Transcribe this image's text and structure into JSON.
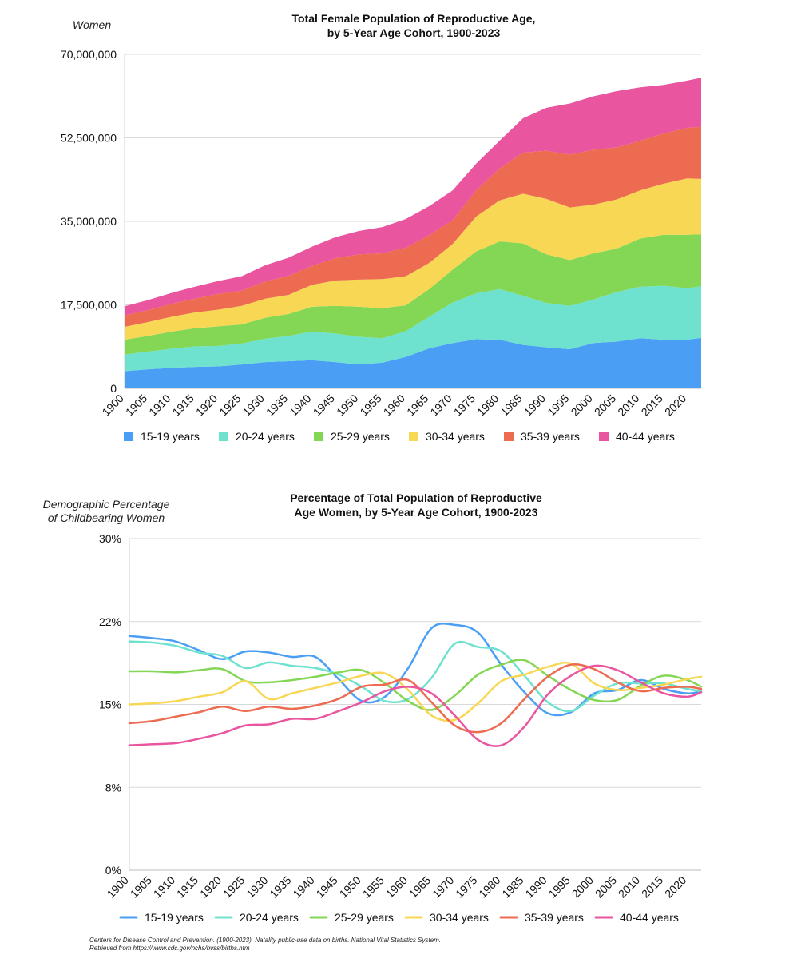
{
  "chart_data": [
    {
      "type": "area",
      "stacked": true,
      "title_line1": "Total Female Population of Reproductive Age,",
      "title_line2": "by 5-Year Age Cohort, 1900-2023",
      "ylabel": "Women",
      "ylim": [
        0,
        70000000
      ],
      "yticks": [
        0,
        17500000,
        35000000,
        52500000,
        70000000
      ],
      "ytick_labels": [
        "0",
        "17,500,000",
        "35,000,000",
        "52,500,000",
        "70,000,000"
      ],
      "xlim": [
        1900,
        2023
      ],
      "xticks": [
        "1900",
        "1905",
        "1910",
        "1915",
        "1920",
        "1925",
        "1930",
        "1935",
        "1940",
        "1945",
        "1950",
        "1955",
        "1960",
        "1965",
        "1970",
        "1975",
        "1980",
        "1985",
        "1990",
        "1995",
        "2000",
        "2005",
        "2010",
        "2015",
        "2020"
      ],
      "grid": true,
      "legend_position": "bottom",
      "x": [
        1900,
        1905,
        1910,
        1915,
        1920,
        1925,
        1930,
        1935,
        1940,
        1945,
        1950,
        1955,
        1960,
        1965,
        1970,
        1975,
        1980,
        1985,
        1990,
        1995,
        2000,
        2005,
        2010,
        2015,
        2020,
        2023
      ],
      "series": [
        {
          "name": "15-19 years",
          "color": "#4a9ff5",
          "values": [
            3600000,
            4000000,
            4300000,
            4500000,
            4600000,
            5000000,
            5500000,
            5700000,
            5900000,
            5500000,
            5000000,
            5400000,
            6600000,
            8400000,
            9500000,
            10300000,
            10200000,
            9100000,
            8600000,
            8200000,
            9500000,
            9800000,
            10500000,
            10200000,
            10200000,
            10600000
          ]
        },
        {
          "name": "20-24 years",
          "color": "#6ee2cf",
          "values": [
            3500000,
            3700000,
            4000000,
            4300000,
            4300000,
            4400000,
            4900000,
            5300000,
            6000000,
            6000000,
            5800000,
            5100000,
            5400000,
            6600000,
            8500000,
            9600000,
            10600000,
            10300000,
            9300000,
            9100000,
            9100000,
            10400000,
            10800000,
            11300000,
            10800000,
            10800000
          ]
        },
        {
          "name": "25-29 years",
          "color": "#84d655",
          "values": [
            3100000,
            3300000,
            3600000,
            3800000,
            4100000,
            4000000,
            4400000,
            4600000,
            5200000,
            5800000,
            6300000,
            6300000,
            5400000,
            5800000,
            6900000,
            8800000,
            10000000,
            11000000,
            10200000,
            9600000,
            9700000,
            9100000,
            10100000,
            10700000,
            11200000,
            10900000
          ]
        },
        {
          "name": "30-34 years",
          "color": "#f8d755",
          "values": [
            2700000,
            2900000,
            3100000,
            3300000,
            3500000,
            3900000,
            4000000,
            4000000,
            4600000,
            5300000,
            5700000,
            6100000,
            6100000,
            5500000,
            5400000,
            7300000,
            8600000,
            10400000,
            11600000,
            11000000,
            10200000,
            10300000,
            10100000,
            10700000,
            11800000,
            11600000
          ]
        },
        {
          "name": "35-39 years",
          "color": "#ed6b51",
          "values": [
            2400000,
            2500000,
            2700000,
            2900000,
            3300000,
            3200000,
            3600000,
            4000000,
            4000000,
            4700000,
            5300000,
            5400000,
            6000000,
            5800000,
            5000000,
            5500000,
            6700000,
            8600000,
            10100000,
            11100000,
            11500000,
            10900000,
            10400000,
            10500000,
            10600000,
            10900000
          ]
        },
        {
          "name": "40-44 years",
          "color": "#e9559e",
          "values": [
            1900000,
            2100000,
            2300000,
            2500000,
            2700000,
            3000000,
            3400000,
            3800000,
            4000000,
            4400000,
            4900000,
            5500000,
            6000000,
            6100000,
            6200000,
            5600000,
            5800000,
            7200000,
            9000000,
            10700000,
            11200000,
            11800000,
            11200000,
            10200000,
            9900000,
            10300000
          ]
        }
      ]
    },
    {
      "type": "line",
      "title_line1": "Percentage of Total Population of Reproductive",
      "title_line2": "Age Women, by 5-Year Age Cohort, 1900-2023",
      "ylabel_line1": "Demographic Percentage",
      "ylabel_line2": "of Childbearing Women",
      "ylim": [
        0,
        30
      ],
      "yticks": [
        0,
        7.5,
        15,
        22.5,
        30
      ],
      "ytick_labels": [
        "0%",
        "8%",
        "15%",
        "22%",
        "30%"
      ],
      "xlim": [
        1900,
        2023
      ],
      "xticks": [
        "1900",
        "1905",
        "1910",
        "1915",
        "1920",
        "1925",
        "1930",
        "1935",
        "1940",
        "1945",
        "1950",
        "1955",
        "1960",
        "1965",
        "1970",
        "1975",
        "1980",
        "1985",
        "1990",
        "1995",
        "2000",
        "2005",
        "2010",
        "2015",
        "2020"
      ],
      "grid": true,
      "legend_position": "bottom",
      "x": [
        1900,
        1905,
        1910,
        1915,
        1920,
        1925,
        1930,
        1935,
        1940,
        1945,
        1950,
        1955,
        1960,
        1965,
        1970,
        1975,
        1980,
        1985,
        1990,
        1995,
        2000,
        2005,
        2010,
        2015,
        2020,
        2023
      ],
      "series": [
        {
          "name": "15-19 years",
          "color": "#4a9ff5",
          "values": [
            21.2,
            21.0,
            20.7,
            19.9,
            19.1,
            19.8,
            19.7,
            19.3,
            19.3,
            17.3,
            15.3,
            15.7,
            18.3,
            21.9,
            22.2,
            21.5,
            18.6,
            16.1,
            14.2,
            14.3,
            16.0,
            16.3,
            17.2,
            16.4,
            16.0,
            16.2
          ]
        },
        {
          "name": "20-24 years",
          "color": "#6ee2cf",
          "values": [
            20.7,
            20.6,
            20.3,
            19.7,
            19.4,
            18.3,
            18.8,
            18.5,
            18.3,
            17.7,
            16.6,
            15.3,
            15.5,
            17.4,
            20.5,
            20.2,
            19.8,
            17.6,
            15.2,
            14.4,
            15.8,
            16.9,
            16.9,
            16.9,
            16.4,
            16.2
          ]
        },
        {
          "name": "25-29 years",
          "color": "#84d655",
          "values": [
            18.0,
            18.0,
            17.9,
            18.1,
            18.2,
            17.1,
            17.0,
            17.2,
            17.5,
            17.9,
            18.1,
            16.9,
            15.3,
            14.5,
            15.8,
            17.7,
            18.6,
            19.0,
            17.6,
            16.3,
            15.4,
            15.4,
            16.7,
            17.6,
            17.2,
            16.6
          ]
        },
        {
          "name": "30-34 years",
          "color": "#f8d755",
          "values": [
            15.0,
            15.1,
            15.3,
            15.7,
            16.1,
            17.1,
            15.5,
            16.0,
            16.5,
            17.0,
            17.6,
            17.8,
            16.3,
            14.0,
            13.6,
            15.1,
            17.1,
            17.7,
            18.4,
            18.7,
            16.9,
            16.3,
            16.5,
            16.8,
            17.3,
            17.5
          ]
        },
        {
          "name": "35-39 years",
          "color": "#ed6b51",
          "values": [
            13.3,
            13.5,
            13.9,
            14.3,
            14.8,
            14.4,
            14.8,
            14.6,
            14.9,
            15.5,
            16.6,
            16.8,
            17.2,
            15.2,
            13.1,
            12.5,
            13.3,
            15.5,
            17.5,
            18.6,
            18.2,
            17.0,
            16.2,
            16.5,
            16.6,
            16.4
          ]
        },
        {
          "name": "40-44 years",
          "color": "#e9559e",
          "values": [
            11.3,
            11.4,
            11.5,
            11.9,
            12.4,
            13.1,
            13.2,
            13.7,
            13.7,
            14.4,
            15.2,
            16.2,
            16.6,
            16.0,
            14.0,
            11.8,
            11.3,
            13.0,
            15.9,
            17.6,
            18.5,
            18.1,
            17.0,
            16.0,
            15.7,
            16.1
          ]
        }
      ]
    }
  ],
  "source_line1": "Centers for Disease Control and Prevention. (1900-2023). Natality public-use data on births. National Vital Statistics System.",
  "source_line2": "Retrieved from https://www.cdc.gov/nchs/nvss/births.htm"
}
